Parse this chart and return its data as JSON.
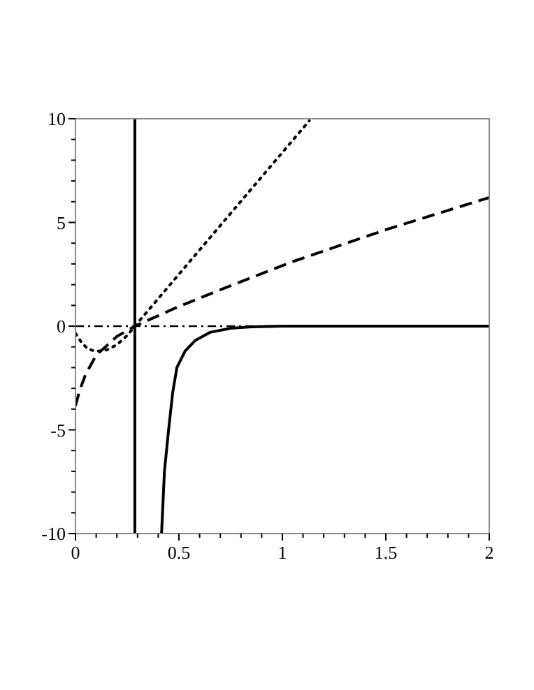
{
  "chart_data": {
    "type": "line",
    "xlim": [
      0,
      2
    ],
    "ylim": [
      -10,
      10
    ],
    "xticks": [
      0,
      {
        "value": 0.1,
        "label": null
      },
      {
        "value": 0.2,
        "label": null
      },
      {
        "value": 0.3,
        "label": null
      },
      {
        "value": 0.4,
        "label": null
      },
      0.5,
      {
        "value": 0.6,
        "label": null
      },
      {
        "value": 0.7,
        "label": null
      },
      {
        "value": 0.8,
        "label": null
      },
      {
        "value": 0.9,
        "label": null
      },
      1,
      {
        "value": 1.1,
        "label": null
      },
      {
        "value": 1.2,
        "label": null
      },
      {
        "value": 1.3,
        "label": null
      },
      {
        "value": 1.4,
        "label": null
      },
      1.5,
      {
        "value": 1.6,
        "label": null
      },
      {
        "value": 1.7,
        "label": null
      },
      {
        "value": 1.8,
        "label": null
      },
      {
        "value": 1.9,
        "label": null
      },
      2
    ],
    "yticks": [
      -10,
      {
        "value": -9,
        "label": null
      },
      {
        "value": -8,
        "label": null
      },
      {
        "value": -7,
        "label": null
      },
      {
        "value": -6,
        "label": null
      },
      -5,
      {
        "value": -4,
        "label": null
      },
      {
        "value": -3,
        "label": null
      },
      {
        "value": -2,
        "label": null
      },
      {
        "value": -1,
        "label": null
      },
      0,
      {
        "value": 1,
        "label": null
      },
      {
        "value": 2,
        "label": null
      },
      {
        "value": 3,
        "label": null
      },
      {
        "value": 4,
        "label": null
      },
      5,
      {
        "value": 6,
        "label": null
      },
      {
        "value": 7,
        "label": null
      },
      {
        "value": 8,
        "label": null
      },
      {
        "value": 9,
        "label": null
      },
      10
    ],
    "grid": false,
    "marker": "none",
    "series": [
      {
        "color": "#000000",
        "line_style": "dotted",
        "x": [
          0,
          0.03,
          0.06,
          0.1,
          0.15,
          0.2,
          0.25,
          0.287,
          1.13
        ],
        "values": [
          -0.35,
          -0.8,
          -1.1,
          -1.22,
          -1.15,
          -0.9,
          -0.45,
          0,
          9.9
        ]
      },
      {
        "color": "#000000",
        "line_style": "dashed",
        "x": [
          0,
          0.02,
          0.05,
          0.1,
          0.15,
          0.2,
          0.287,
          0.5,
          0.75,
          1.047,
          1.5,
          2
        ],
        "values": [
          -3.84,
          -3.1,
          -2.3,
          -1.4,
          -0.95,
          -0.5,
          0,
          0.95,
          1.95,
          3.1,
          4.65,
          6.2
        ]
      },
      {
        "color": "#000000",
        "line_style": "solid",
        "x": [
          0.416,
          0.43,
          0.45,
          0.47,
          0.49,
          0.53,
          0.58,
          0.65,
          0.75,
          0.85,
          1,
          2
        ],
        "values": [
          -10,
          -7,
          -5,
          -3.2,
          -2,
          -1.2,
          -0.68,
          -0.3,
          -0.1,
          -0.03,
          0,
          0
        ]
      }
    ],
    "ref_lines": [
      {
        "axis": "y",
        "value": 0,
        "color": "#000000",
        "line_style": "dashdot"
      },
      {
        "axis": "x",
        "value": 0.287,
        "color": "#000000",
        "line_style": "solid"
      }
    ]
  }
}
